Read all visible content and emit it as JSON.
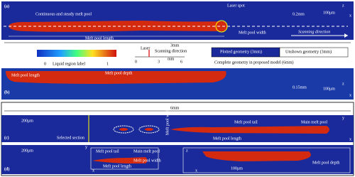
{
  "panel_a": {
    "label": "(a)",
    "title": "Continuous and steady melt pool",
    "laser_spot": "Laser spot",
    "height": "0.2mm",
    "scale": "100μm",
    "width": "Melt pool width",
    "direction": "Scanning direction",
    "length": "Melt pool length",
    "total": "3mm",
    "axis_z": "z",
    "axis_x": "x"
  },
  "colorbar": {
    "min": "0",
    "max": "1",
    "title": "Liquid region label"
  },
  "laser_legend": {
    "laser": "Laser",
    "direction": "Scanning direction",
    "unit": "mm",
    "ticks": [
      "0",
      "3",
      "6"
    ]
  },
  "geometry_legend": {
    "plotted": "Plotted geometry (3mm)",
    "unshown": "Unshown geometry (3mm)",
    "complete": "Complete geometry in proposed model (6mm)"
  },
  "panel_b": {
    "label": "(b)",
    "depth": "Melt pool depth",
    "length": "Melt pool length",
    "height": "0.15mm",
    "scale": "100μm",
    "axis_z": "z",
    "axis_x": "x"
  },
  "panel_c": {
    "total": "6mm",
    "label": "(c)",
    "scale": "200μm",
    "section": "Selected section",
    "width": "Melt pool width",
    "tail": "Melt pool tail",
    "main": "Main melt pool",
    "length": "Melt pool length",
    "axis_y": "y",
    "axis_x": "x"
  },
  "panel_d": {
    "label": "(d)",
    "scale": "200μm",
    "tail": "Melt pool tail",
    "main": "Main melt pool",
    "width": "Melt pool width",
    "length": "Melt pool length",
    "scale2": "100μm",
    "depth": "Melt pool depth",
    "axis_y": "y",
    "axis_x": "x",
    "axis_z": "z",
    "axis_x2": "x"
  }
}
